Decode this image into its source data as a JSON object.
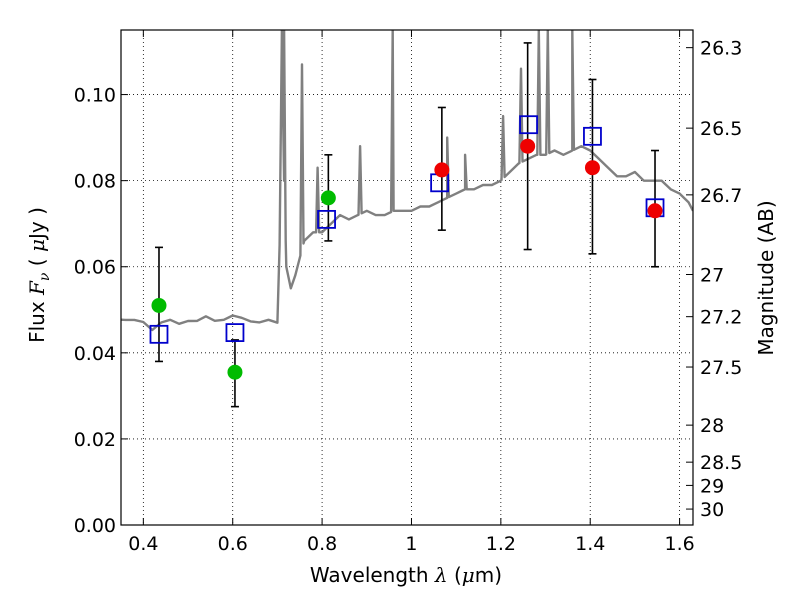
{
  "chart_data": {
    "type": "scatter",
    "xlabel": "Wavelength  λ (μm)",
    "ylabel": "Flux  Fν  ( μJy )",
    "y2label": "Magnitude (AB)",
    "xlim": [
      0.35,
      1.63
    ],
    "ylim": [
      0.0,
      0.115
    ],
    "x_ticks": [
      0.4,
      0.6,
      0.8,
      1.0,
      1.2,
      1.4,
      1.6
    ],
    "x_tick_labels": [
      "0.4",
      "0.6",
      "0.8",
      "1",
      "1.2",
      "1.4",
      "1.6"
    ],
    "y_ticks": [
      0.0,
      0.02,
      0.04,
      0.06,
      0.08,
      0.1
    ],
    "y_tick_labels": [
      "0.00",
      "0.02",
      "0.04",
      "0.06",
      "0.08",
      "0.10"
    ],
    "y2_ticks": [
      {
        "label": "26.3",
        "flux": 0.1109
      },
      {
        "label": "26.5",
        "flux": 0.0922
      },
      {
        "label": "26.7",
        "flux": 0.0767
      },
      {
        "label": "27",
        "flux": 0.0582
      },
      {
        "label": "27.2",
        "flux": 0.0484
      },
      {
        "label": "27.5",
        "flux": 0.0367
      },
      {
        "label": "28",
        "flux": 0.0232
      },
      {
        "label": "28.5",
        "flux": 0.0146
      },
      {
        "label": "29",
        "flux": 0.0092
      },
      {
        "label": "30",
        "flux": 0.0037
      }
    ],
    "grid": true,
    "colors": {
      "spectrum": "#808080",
      "green": "#00bb00",
      "red": "#ee0000",
      "model": "#0000cc",
      "errorbar": "#000000"
    },
    "spectrum": {
      "x": [
        0.35,
        0.36,
        0.38,
        0.4,
        0.42,
        0.44,
        0.46,
        0.48,
        0.5,
        0.52,
        0.54,
        0.56,
        0.58,
        0.6,
        0.62,
        0.64,
        0.66,
        0.68,
        0.7,
        0.705,
        0.71,
        0.715,
        0.72,
        0.73,
        0.74,
        0.76,
        0.78,
        0.8,
        0.82,
        0.84,
        0.86,
        0.88,
        0.9,
        0.92,
        0.94,
        0.96,
        0.98,
        1.0,
        1.02,
        1.04,
        1.06,
        1.08,
        1.1,
        1.12,
        1.14,
        1.16,
        1.18,
        1.2,
        1.22,
        1.24,
        1.26,
        1.28,
        1.3,
        1.32,
        1.34,
        1.36,
        1.38,
        1.4,
        1.42,
        1.44,
        1.46,
        1.48,
        1.5,
        1.52,
        1.54,
        1.56,
        1.58,
        1.6,
        1.62,
        1.63
      ],
      "y": [
        0.047,
        0.048,
        0.047,
        0.047,
        0.046,
        0.047,
        0.047,
        0.047,
        0.048,
        0.047,
        0.048,
        0.048,
        0.048,
        0.048,
        0.048,
        0.048,
        0.047,
        0.047,
        0.047,
        0.065,
        0.115,
        0.08,
        0.06,
        0.055,
        0.058,
        0.066,
        0.068,
        0.068,
        0.07,
        0.072,
        0.071,
        0.072,
        0.073,
        0.072,
        0.072,
        0.073,
        0.073,
        0.073,
        0.074,
        0.074,
        0.075,
        0.076,
        0.077,
        0.078,
        0.078,
        0.079,
        0.079,
        0.08,
        0.082,
        0.084,
        0.085,
        0.086,
        0.086,
        0.087,
        0.086,
        0.087,
        0.088,
        0.087,
        0.085,
        0.083,
        0.081,
        0.081,
        0.082,
        0.08,
        0.08,
        0.08,
        0.078,
        0.077,
        0.075,
        0.073
      ]
    },
    "emission_lines": [
      {
        "x": 0.715,
        "peak": 0.115
      },
      {
        "x": 0.755,
        "peak": 0.107
      },
      {
        "x": 0.79,
        "peak": 0.083
      },
      {
        "x": 0.885,
        "peak": 0.088
      },
      {
        "x": 0.958,
        "peak": 0.115
      },
      {
        "x": 1.08,
        "peak": 0.09
      },
      {
        "x": 1.12,
        "peak": 0.086
      },
      {
        "x": 1.205,
        "peak": 0.095
      },
      {
        "x": 1.245,
        "peak": 0.106
      },
      {
        "x": 1.285,
        "peak": 0.115
      },
      {
        "x": 1.305,
        "peak": 0.115
      },
      {
        "x": 1.36,
        "peak": 0.115
      }
    ],
    "observed_green": [
      {
        "x": 0.435,
        "y": 0.051,
        "err_low": 0.038,
        "err_high": 0.0645
      },
      {
        "x": 0.605,
        "y": 0.0355,
        "err_low": 0.0275,
        "err_high": 0.043
      },
      {
        "x": 0.814,
        "y": 0.076,
        "err_low": 0.066,
        "err_high": 0.086
      }
    ],
    "observed_red": [
      {
        "x": 1.068,
        "y": 0.0825,
        "err_low": 0.0685,
        "err_high": 0.097
      },
      {
        "x": 1.26,
        "y": 0.088,
        "err_low": 0.064,
        "err_high": 0.112
      },
      {
        "x": 1.405,
        "y": 0.083,
        "err_low": 0.063,
        "err_high": 0.1035
      },
      {
        "x": 1.545,
        "y": 0.073,
        "err_low": 0.06,
        "err_high": 0.087
      }
    ],
    "model_points": [
      {
        "x": 0.435,
        "y": 0.0443
      },
      {
        "x": 0.605,
        "y": 0.0447
      },
      {
        "x": 0.81,
        "y": 0.071
      },
      {
        "x": 1.063,
        "y": 0.0795
      },
      {
        "x": 1.262,
        "y": 0.093
      },
      {
        "x": 1.405,
        "y": 0.0903
      },
      {
        "x": 1.545,
        "y": 0.0737
      }
    ]
  }
}
